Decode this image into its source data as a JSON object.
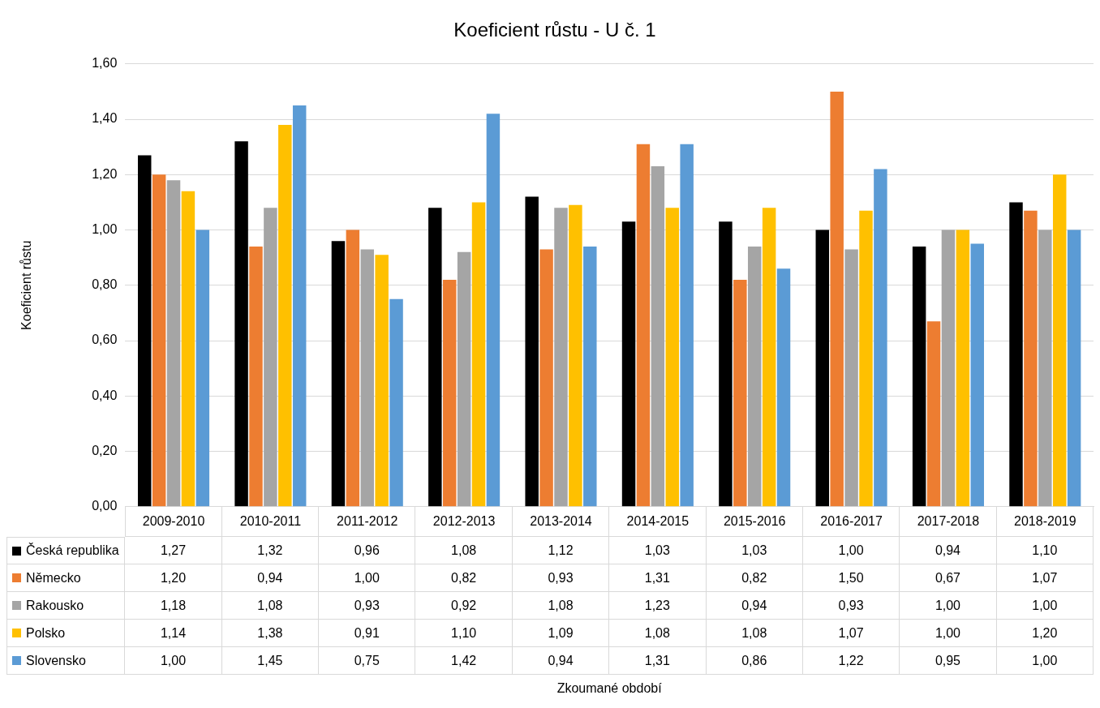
{
  "chart_data": {
    "type": "bar",
    "title": "Koeficient růstu - U č. 1",
    "annotations": [
      "Zkoumané období"
    ],
    "ylabel": "Koeficient růstu",
    "categories": [
      "2009-2010",
      "2010-2011",
      "2011-2012",
      "2012-2013",
      "2013-2014",
      "2014-2015",
      "2015-2016",
      "2016-2017",
      "2017-2018",
      "2018-2019"
    ],
    "series": [
      {
        "name": "Česká republika",
        "color": "#000000",
        "values": [
          1.27,
          1.32,
          0.96,
          1.08,
          1.12,
          1.03,
          1.03,
          1.0,
          0.94,
          1.1
        ],
        "value_labels": [
          "1,27",
          "1,32",
          "0,96",
          "1,08",
          "1,12",
          "1,03",
          "1,03",
          "1,00",
          "0,94",
          "1,10"
        ]
      },
      {
        "name": "Německo",
        "color": "#ed7d31",
        "values": [
          1.2,
          0.94,
          1.0,
          0.82,
          0.93,
          1.31,
          0.82,
          1.5,
          0.67,
          1.07
        ],
        "value_labels": [
          "1,20",
          "0,94",
          "1,00",
          "0,82",
          "0,93",
          "1,31",
          "0,82",
          "1,50",
          "0,67",
          "1,07"
        ]
      },
      {
        "name": "Rakousko",
        "color": "#a5a5a5",
        "values": [
          1.18,
          1.08,
          0.93,
          0.92,
          1.08,
          1.23,
          0.94,
          0.93,
          1.0,
          1.0
        ],
        "value_labels": [
          "1,18",
          "1,08",
          "0,93",
          "0,92",
          "1,08",
          "1,23",
          "0,94",
          "0,93",
          "1,00",
          "1,00"
        ]
      },
      {
        "name": "Polsko",
        "color": "#ffc000",
        "values": [
          1.14,
          1.38,
          0.91,
          1.1,
          1.09,
          1.08,
          1.08,
          1.07,
          1.0,
          1.2
        ],
        "value_labels": [
          "1,14",
          "1,38",
          "0,91",
          "1,10",
          "1,09",
          "1,08",
          "1,08",
          "1,07",
          "1,00",
          "1,20"
        ]
      },
      {
        "name": "Slovensko",
        "color": "#5b9bd5",
        "values": [
          1.0,
          1.45,
          0.75,
          1.42,
          0.94,
          1.31,
          0.86,
          1.22,
          0.95,
          1.0
        ],
        "value_labels": [
          "1,00",
          "1,45",
          "0,75",
          "1,42",
          "0,94",
          "1,31",
          "0,86",
          "1,22",
          "0,95",
          "1,00"
        ]
      }
    ],
    "ylim": [
      0,
      1.6
    ],
    "yticks": [
      {
        "value": 0,
        "label": "0,00"
      },
      {
        "value": 0.2,
        "label": "0,20"
      },
      {
        "value": 0.4,
        "label": "0,40"
      },
      {
        "value": 0.6,
        "label": "0,60"
      },
      {
        "value": 0.8,
        "label": "0,80"
      },
      {
        "value": 1.0,
        "label": "1,00"
      },
      {
        "value": 1.2,
        "label": "1,20"
      },
      {
        "value": 1.4,
        "label": "1,40"
      },
      {
        "value": 1.6,
        "label": "1,60"
      }
    ],
    "grid": "y",
    "legend": "bottom"
  }
}
